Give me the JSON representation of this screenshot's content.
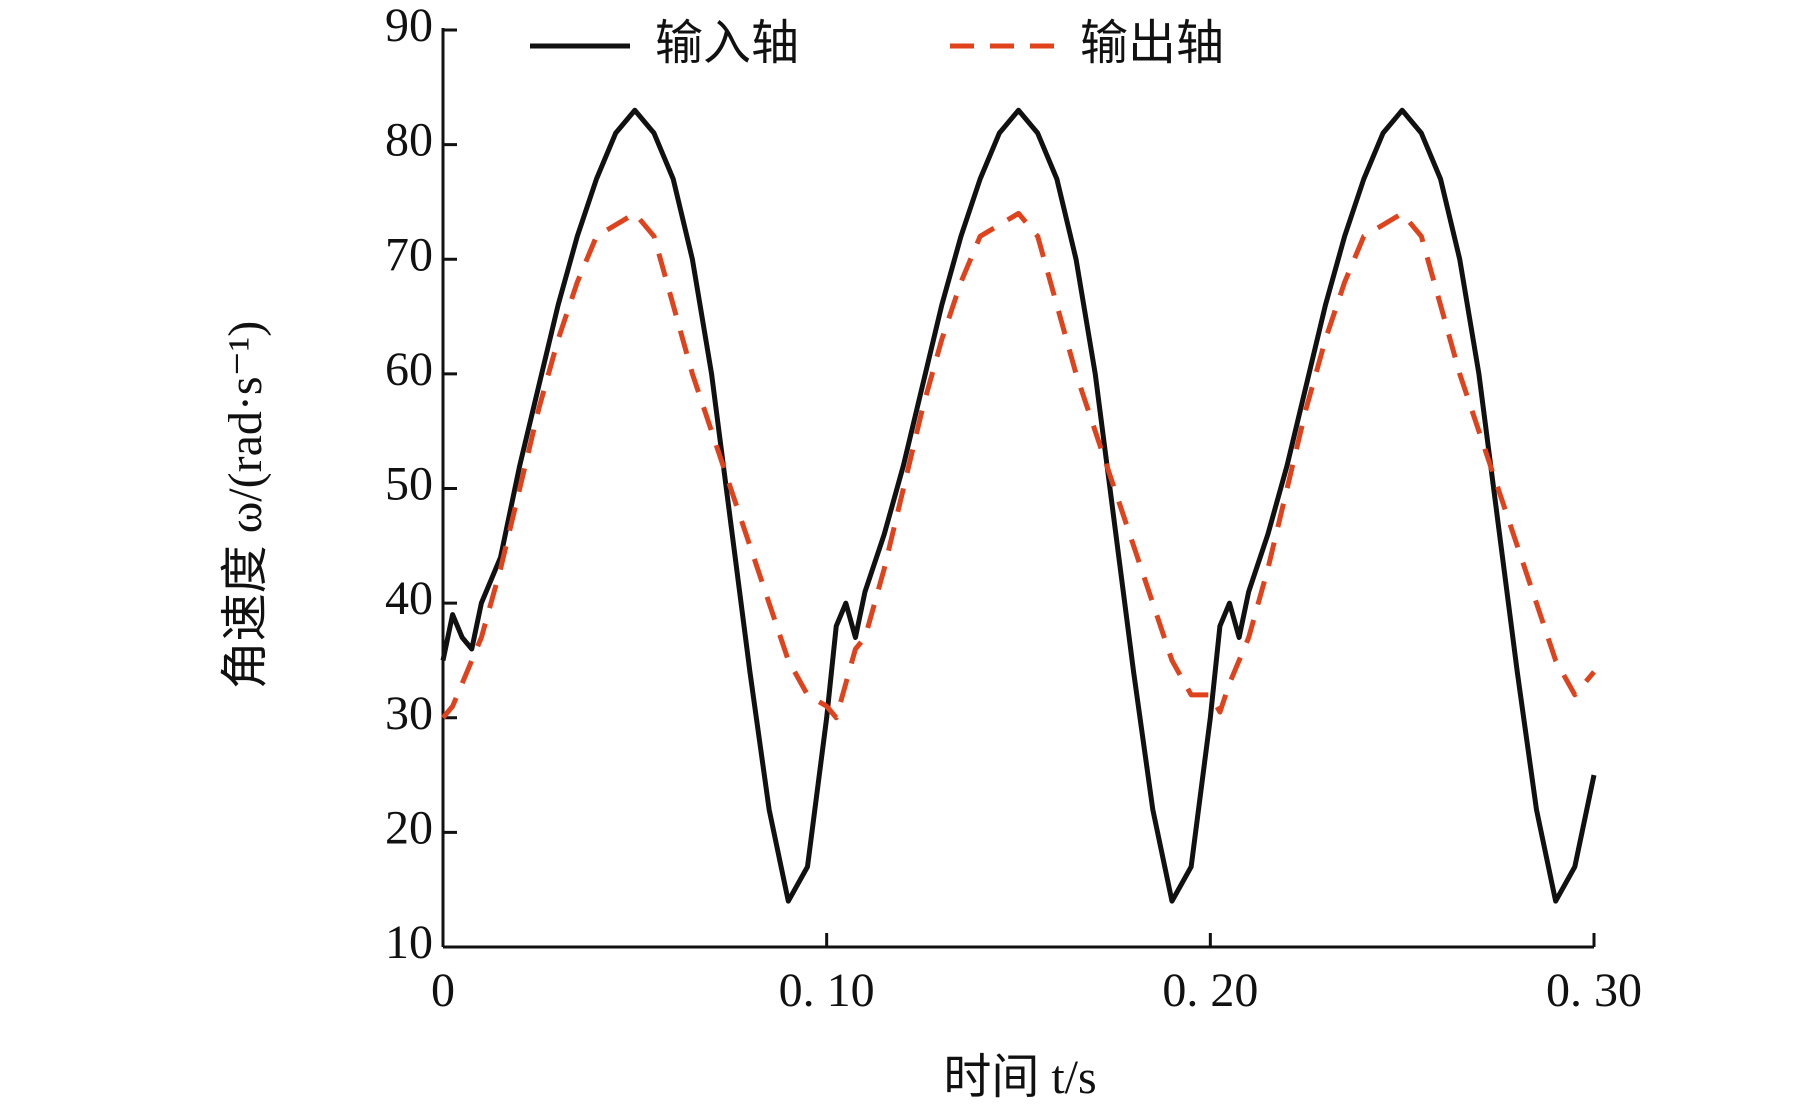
{
  "chart_data": {
    "type": "line",
    "xlabel": "时间 t/s",
    "ylabel": "角速度 ω/(rad·s⁻¹)",
    "x": [
      0,
      0.0025,
      0.005,
      0.0075,
      0.01,
      0.015,
      0.02,
      0.025,
      0.03,
      0.035,
      0.04,
      0.045,
      0.05,
      0.055,
      0.06,
      0.065,
      0.07,
      0.075,
      0.08,
      0.085,
      0.09,
      0.095,
      0.1,
      0.1025,
      0.105,
      0.1075,
      0.11,
      0.115,
      0.12,
      0.125,
      0.13,
      0.135,
      0.14,
      0.145,
      0.15,
      0.155,
      0.16,
      0.165,
      0.17,
      0.175,
      0.18,
      0.185,
      0.19,
      0.195,
      0.2,
      0.2025,
      0.205,
      0.2075,
      0.21,
      0.215,
      0.22,
      0.225,
      0.23,
      0.235,
      0.24,
      0.245,
      0.25,
      0.255,
      0.26,
      0.265,
      0.27,
      0.275,
      0.28,
      0.285,
      0.29,
      0.295,
      0.3
    ],
    "series": [
      {
        "name": "输入轴",
        "color": "#111111",
        "dash": false,
        "values": [
          35,
          39,
          37,
          36,
          40,
          44,
          52,
          59,
          66,
          72,
          77,
          81,
          83,
          81,
          77,
          70,
          60,
          47,
          34,
          22,
          14,
          17,
          30,
          38,
          40,
          37,
          41,
          46,
          52,
          59,
          66,
          72,
          77,
          81,
          83,
          81,
          77,
          70,
          60,
          47,
          34,
          22,
          14,
          17,
          30,
          38,
          40,
          37,
          41,
          46,
          52,
          59,
          66,
          72,
          77,
          81,
          83,
          81,
          77,
          70,
          60,
          47,
          34,
          22,
          14,
          17,
          25
        ]
      },
      {
        "name": "输出轴",
        "color": "#e0421c",
        "dash": true,
        "values": [
          30,
          31,
          33,
          35,
          37,
          43,
          50,
          57,
          63,
          68,
          72,
          73,
          74,
          72,
          66,
          60,
          55,
          50,
          45,
          40,
          35,
          32,
          31,
          30,
          33,
          36,
          37,
          43,
          50,
          57,
          63,
          68,
          72,
          73,
          74,
          72,
          66,
          60,
          55,
          50,
          45,
          40,
          35,
          32,
          32,
          30.5,
          33,
          35,
          37,
          43,
          50,
          57,
          63,
          68,
          72,
          73,
          74,
          72,
          66,
          60,
          55,
          50,
          45,
          40,
          35,
          32,
          34
        ]
      }
    ],
    "xlim": [
      0,
      0.3
    ],
    "xticks": [
      0,
      {
        "value": 0.1,
        "label": "0. 10"
      },
      {
        "value": 0.2,
        "label": "0. 20"
      },
      {
        "value": 0.3,
        "label": "0. 30"
      }
    ],
    "ylim": [
      10,
      90
    ],
    "yticks": [
      10,
      20,
      30,
      40,
      50,
      60,
      70,
      80,
      90
    ],
    "legend": "top"
  }
}
